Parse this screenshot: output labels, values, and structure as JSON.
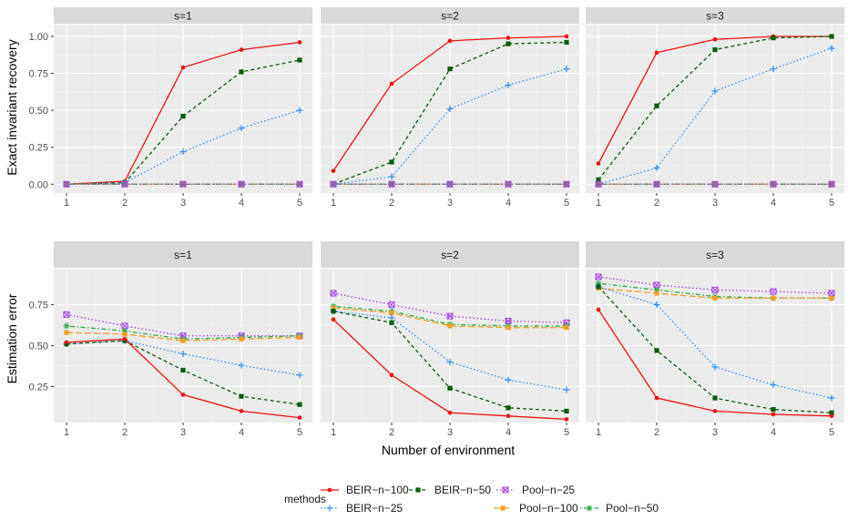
{
  "chart_data": {
    "type": "line",
    "xlabel": "Number of environment",
    "x": [
      1,
      2,
      3,
      4,
      5
    ],
    "facet_labels": [
      "s=1",
      "s=2",
      "s=3"
    ],
    "legend": {
      "title": "methods",
      "placement": "bottom",
      "entries": [
        "BEIR−n−100",
        "BEIR−n−25",
        "BEIR−n−50",
        "Pool−n−100",
        "Pool−n−25",
        "Pool−n−50"
      ]
    },
    "styles": {
      "BEIR−n−100": {
        "color": "#ee1111",
        "dash": "solid",
        "shape": "dot"
      },
      "BEIR−n−25": {
        "color": "#2f8ff0",
        "dash": "dotted",
        "shape": "plus"
      },
      "BEIR−n−50": {
        "color": "#0b5b0b",
        "dash": "dashed",
        "shape": "square"
      },
      "Pool−n−100": {
        "color": "#f0a020",
        "dash": "longdash",
        "shape": "square"
      },
      "Pool−n−25": {
        "color": "#a23fe0",
        "dash": "dotted",
        "shape": "boxx"
      },
      "Pool−n−50": {
        "color": "#2aa84a",
        "dash": "dotdash",
        "shape": "star"
      }
    },
    "rows": [
      {
        "ylabel": "Exact invariant recovery",
        "ylim": [
          -0.06,
          1.08
        ],
        "yticks": [
          0.0,
          0.25,
          0.5,
          0.75,
          1.0
        ],
        "ytick_labels": [
          "0.00",
          "0.25",
          "0.50",
          "0.75",
          "1.00"
        ],
        "facets": [
          {
            "series": [
              {
                "name": "BEIR−n−100",
                "values": [
                  0.0,
                  0.02,
                  0.79,
                  0.91,
                  0.96
                ]
              },
              {
                "name": "BEIR−n−50",
                "values": [
                  0.0,
                  0.01,
                  0.46,
                  0.76,
                  0.84
                ]
              },
              {
                "name": "BEIR−n−25",
                "values": [
                  0.0,
                  0.01,
                  0.22,
                  0.38,
                  0.5
                ]
              },
              {
                "name": "Pool−n−100",
                "values": [
                  0.0,
                  0.0,
                  0.0,
                  0.0,
                  0.0
                ]
              },
              {
                "name": "Pool−n−50",
                "values": [
                  0.0,
                  0.0,
                  0.0,
                  0.0,
                  0.0
                ]
              },
              {
                "name": "Pool−n−25",
                "values": [
                  0.0,
                  0.0,
                  0.0,
                  0.0,
                  0.0
                ]
              }
            ]
          },
          {
            "series": [
              {
                "name": "BEIR−n−100",
                "values": [
                  0.09,
                  0.68,
                  0.97,
                  0.99,
                  1.0
                ]
              },
              {
                "name": "BEIR−n−50",
                "values": [
                  0.0,
                  0.15,
                  0.78,
                  0.95,
                  0.96
                ]
              },
              {
                "name": "BEIR−n−25",
                "values": [
                  0.0,
                  0.05,
                  0.51,
                  0.67,
                  0.78
                ]
              },
              {
                "name": "Pool−n−100",
                "values": [
                  0.0,
                  0.0,
                  0.0,
                  0.0,
                  0.0
                ]
              },
              {
                "name": "Pool−n−50",
                "values": [
                  0.0,
                  0.0,
                  0.0,
                  0.0,
                  0.0
                ]
              },
              {
                "name": "Pool−n−25",
                "values": [
                  0.0,
                  0.0,
                  0.0,
                  0.0,
                  0.0
                ]
              }
            ]
          },
          {
            "series": [
              {
                "name": "BEIR−n−100",
                "values": [
                  0.14,
                  0.89,
                  0.98,
                  1.0,
                  1.0
                ]
              },
              {
                "name": "BEIR−n−50",
                "values": [
                  0.03,
                  0.53,
                  0.91,
                  0.99,
                  1.0
                ]
              },
              {
                "name": "BEIR−n−25",
                "values": [
                  0.0,
                  0.11,
                  0.63,
                  0.78,
                  0.92
                ]
              },
              {
                "name": "Pool−n−100",
                "values": [
                  0.0,
                  0.0,
                  0.0,
                  0.0,
                  0.0
                ]
              },
              {
                "name": "Pool−n−50",
                "values": [
                  0.0,
                  0.0,
                  0.0,
                  0.0,
                  0.0
                ]
              },
              {
                "name": "Pool−n−25",
                "values": [
                  0.0,
                  0.0,
                  0.0,
                  0.0,
                  0.0
                ]
              }
            ]
          }
        ]
      },
      {
        "ylabel": "Estimation error",
        "ylim": [
          0.03,
          0.97
        ],
        "yticks": [
          0.25,
          0.5,
          0.75
        ],
        "ytick_labels": [
          "0.25",
          "0.50",
          "0.75"
        ],
        "facets": [
          {
            "series": [
              {
                "name": "Pool−n−25",
                "values": [
                  0.69,
                  0.62,
                  0.56,
                  0.56,
                  0.56
                ]
              },
              {
                "name": "Pool−n−50",
                "values": [
                  0.62,
                  0.59,
                  0.54,
                  0.55,
                  0.56
                ]
              },
              {
                "name": "Pool−n−100",
                "values": [
                  0.58,
                  0.57,
                  0.53,
                  0.54,
                  0.55
                ]
              },
              {
                "name": "BEIR−n−25",
                "values": [
                  0.51,
                  0.53,
                  0.45,
                  0.38,
                  0.32
                ]
              },
              {
                "name": "BEIR−n−50",
                "values": [
                  0.51,
                  0.53,
                  0.35,
                  0.19,
                  0.14
                ]
              },
              {
                "name": "BEIR−n−100",
                "values": [
                  0.52,
                  0.54,
                  0.2,
                  0.1,
                  0.06
                ]
              }
            ]
          },
          {
            "series": [
              {
                "name": "Pool−n−25",
                "values": [
                  0.82,
                  0.75,
                  0.68,
                  0.65,
                  0.64
                ]
              },
              {
                "name": "Pool−n−50",
                "values": [
                  0.74,
                  0.71,
                  0.63,
                  0.62,
                  0.62
                ]
              },
              {
                "name": "Pool−n−100",
                "values": [
                  0.73,
                  0.7,
                  0.62,
                  0.61,
                  0.61
                ]
              },
              {
                "name": "BEIR−n−25",
                "values": [
                  0.71,
                  0.67,
                  0.4,
                  0.29,
                  0.23
                ]
              },
              {
                "name": "BEIR−n−50",
                "values": [
                  0.71,
                  0.64,
                  0.24,
                  0.12,
                  0.1
                ]
              },
              {
                "name": "BEIR−n−100",
                "values": [
                  0.66,
                  0.32,
                  0.09,
                  0.07,
                  0.05
                ]
              }
            ]
          },
          {
            "series": [
              {
                "name": "Pool−n−25",
                "values": [
                  0.92,
                  0.87,
                  0.84,
                  0.83,
                  0.82
                ]
              },
              {
                "name": "Pool−n−50",
                "values": [
                  0.88,
                  0.84,
                  0.8,
                  0.79,
                  0.79
                ]
              },
              {
                "name": "Pool−n−100",
                "values": [
                  0.85,
                  0.82,
                  0.79,
                  0.79,
                  0.79
                ]
              },
              {
                "name": "BEIR−n−25",
                "values": [
                  0.86,
                  0.75,
                  0.37,
                  0.26,
                  0.18
                ]
              },
              {
                "name": "BEIR−n−50",
                "values": [
                  0.86,
                  0.47,
                  0.18,
                  0.11,
                  0.09
                ]
              },
              {
                "name": "BEIR−n−100",
                "values": [
                  0.72,
                  0.18,
                  0.1,
                  0.08,
                  0.07
                ]
              }
            ]
          }
        ]
      }
    ]
  }
}
